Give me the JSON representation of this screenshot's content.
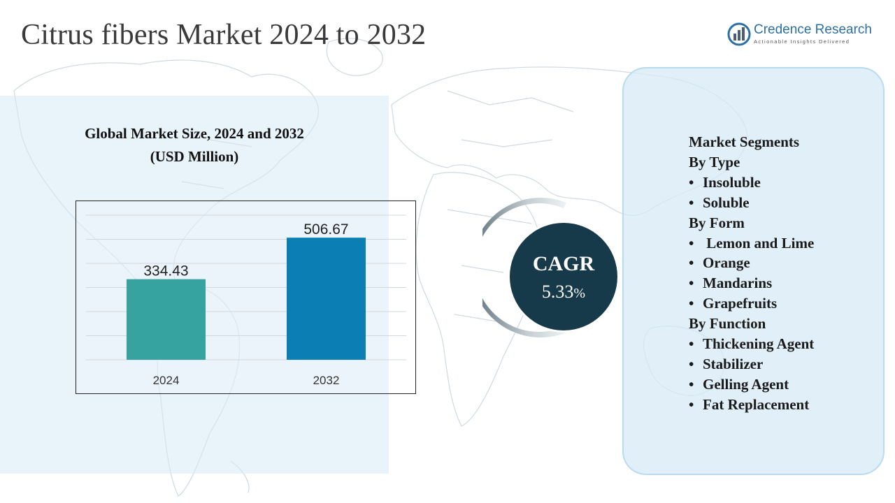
{
  "header": {
    "title": "Citrus fibers Market 2024 to 2032"
  },
  "logo": {
    "name": "Credence Research",
    "tagline": "Actionable Insights Delivered"
  },
  "chart_title": {
    "line1": "Global Market Size, 2024 and 2032",
    "line2": "(USD Million)"
  },
  "chart_data": {
    "type": "bar",
    "categories": [
      "2024",
      "2032"
    ],
    "values": [
      334.43,
      506.67
    ],
    "value_labels": [
      "334.43",
      "506.67"
    ],
    "colors": [
      "#36a3a1",
      "#0b7fb3"
    ],
    "ylim": [
      0,
      600
    ],
    "grid": true,
    "title": "Global Market Size, 2024 and 2032 (USD Million)"
  },
  "cagr": {
    "label": "CAGR",
    "value": "5.33",
    "unit": "%"
  },
  "segments": {
    "heading": "Market Segments",
    "groups": [
      {
        "title": "By Type",
        "items": [
          "Insoluble",
          "Soluble"
        ]
      },
      {
        "title": "By Form",
        "items": [
          " Lemon and Lime",
          "Orange",
          "Mandarins",
          "Grapefruits"
        ]
      },
      {
        "title": "By Function",
        "items": [
          "Thickening Agent",
          "Stabilizer",
          "Gelling Agent",
          "Fat Replacement"
        ]
      }
    ]
  },
  "colors": {
    "panel": "#d6eaf6",
    "cagr_circle": "#163a4a",
    "logo": "#2a6fa8"
  }
}
